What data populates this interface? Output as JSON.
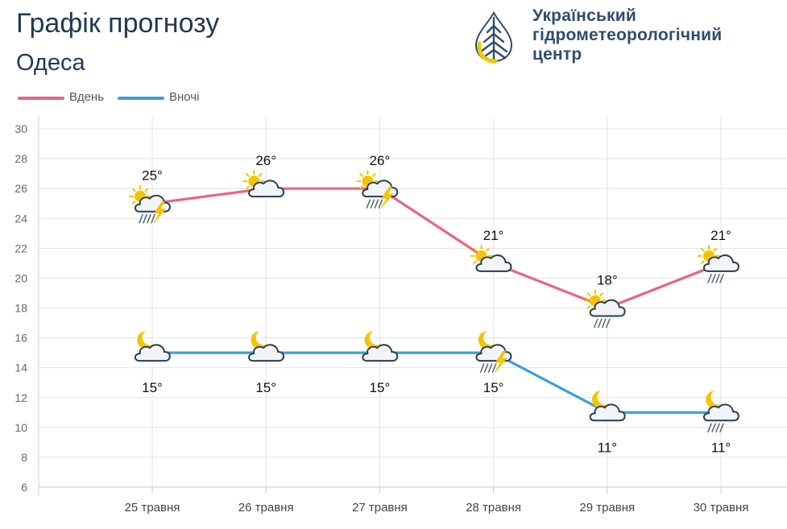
{
  "header": {
    "title": "Графік прогнозу",
    "city": "Одеса",
    "org_lines": [
      "Український",
      "гідрометеорологічний",
      "центр"
    ],
    "logo_icon": "water-drop-logo-icon"
  },
  "legend": [
    {
      "label": "Вдень",
      "color": "#e8667f"
    },
    {
      "label": "Вночі",
      "color": "#3e9fd6"
    }
  ],
  "chart_data": {
    "type": "line",
    "categories": [
      "25 травня",
      "26 травня",
      "27 травня",
      "28 травня",
      "29 травня",
      "30 травня"
    ],
    "ylim": [
      6,
      30
    ],
    "yticks": [
      6,
      8,
      10,
      12,
      14,
      16,
      18,
      20,
      22,
      24,
      26,
      28,
      30
    ],
    "grid": true,
    "legend_position": "top-left",
    "series": [
      {
        "name": "Вдень",
        "color": "#e8667f",
        "values": [
          25,
          26,
          26,
          21,
          18,
          21
        ],
        "labels": [
          "25°",
          "26°",
          "26°",
          "21°",
          "18°",
          "21°"
        ],
        "icons": [
          "sun-cloud-rain-thunder-icon",
          "sun-cloud-icon",
          "sun-cloud-rain-thunder-icon",
          "sun-cloud-icon",
          "sun-cloud-rain-icon",
          "sun-cloud-rain-icon"
        ]
      },
      {
        "name": "Вночі",
        "color": "#3e9fd6",
        "values": [
          15,
          15,
          15,
          15,
          11,
          11
        ],
        "labels": [
          "15°",
          "15°",
          "15°",
          "15°",
          "11°",
          "11°"
        ],
        "icons": [
          "moon-cloud-icon",
          "moon-cloud-icon",
          "moon-cloud-icon",
          "moon-cloud-rain-thunder-icon",
          "moon-cloud-icon",
          "moon-cloud-rain-icon"
        ]
      }
    ]
  }
}
